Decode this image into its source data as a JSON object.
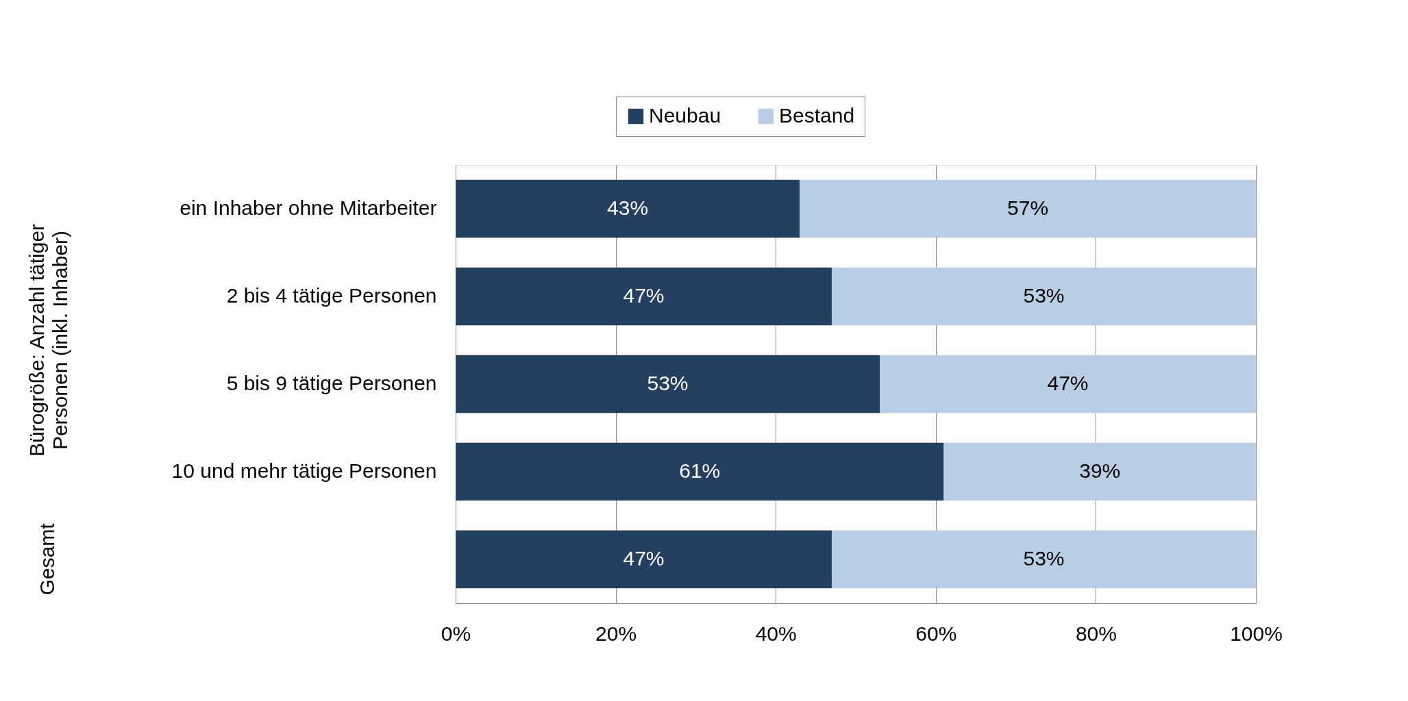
{
  "chart_data": {
    "type": "bar",
    "orientation": "horizontal",
    "stacked": true,
    "categories": [
      "ein Inhaber ohne Mitarbeiter",
      "2 bis 4 tätige Personen",
      "5 bis 9 tätige Personen",
      "10 und mehr tätige Personen",
      null
    ],
    "series": [
      {
        "name": "Neubau",
        "color": "#243f60",
        "values": [
          43,
          47,
          53,
          61,
          47
        ],
        "value_labels": [
          "43%",
          "47%",
          "53%",
          "61%",
          "47%"
        ]
      },
      {
        "name": "Bestand",
        "color": "#b9cde5",
        "values": [
          57,
          53,
          47,
          39,
          53
        ],
        "value_labels": [
          "57%",
          "53%",
          "47%",
          "39%",
          "53%"
        ]
      }
    ],
    "xlim": [
      0,
      100
    ],
    "xticks": [
      {
        "value": 0,
        "label": "0%"
      },
      {
        "value": 20,
        "label": "20%"
      },
      {
        "value": 40,
        "label": "40%"
      },
      {
        "value": 60,
        "label": "60%"
      },
      {
        "value": 80,
        "label": "80%"
      },
      {
        "value": 100,
        "label": "100%"
      }
    ],
    "grid": "x",
    "legend": "top",
    "annotations": [
      "Bürogröße: Anzahl tätiger\nPersonen (inkl. Inhaber)",
      "Gesamt"
    ]
  }
}
